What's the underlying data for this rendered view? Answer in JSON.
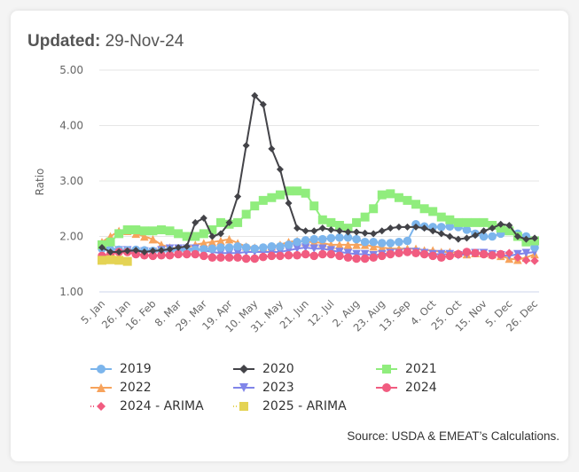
{
  "header": {
    "updated_label": "Updated:",
    "updated_value": "29-Nov-24"
  },
  "source": "Source: USDA & EMEAT’s Calculations.",
  "chart_data": {
    "type": "line",
    "title": "",
    "xlabel": "",
    "ylabel": "Ratio",
    "ylim": [
      1,
      5
    ],
    "yticks": [
      "1.00",
      "2.00",
      "3.00",
      "4.00",
      "5.00"
    ],
    "grid": true,
    "legend_position": "bottom",
    "x_tick_labels": [
      "5. Jan",
      "26. Jan",
      "16. Feb",
      "8. Mar",
      "29. Mar",
      "19. Apr",
      "10. May",
      "31. May",
      "21. Jun",
      "12. Jul",
      "2. Aug",
      "23. Aug",
      "13. Sep",
      "4. Oct",
      "25. Oct",
      "15. Nov",
      "5. Dec",
      "26. Dec"
    ],
    "weeks": 52,
    "series": [
      {
        "name": "2019",
        "color": "#7cb5ec",
        "marker": "circle",
        "line": true,
        "values": [
          1.78,
          1.76,
          1.76,
          1.75,
          1.76,
          1.75,
          1.74,
          1.74,
          1.75,
          1.75,
          1.75,
          1.76,
          1.77,
          1.78,
          1.8,
          1.8,
          1.82,
          1.8,
          1.78,
          1.8,
          1.82,
          1.82,
          1.85,
          1.9,
          1.93,
          1.95,
          1.95,
          1.97,
          1.98,
          1.98,
          1.95,
          1.9,
          1.9,
          1.88,
          1.88,
          1.9,
          1.92,
          2.22,
          2.18,
          2.17,
          2.17,
          2.18,
          2.17,
          2.12,
          2.05,
          2.0,
          2.0,
          2.05,
          2.1,
          2.05,
          2.0,
          1.8
        ]
      },
      {
        "name": "2020",
        "color": "#434348",
        "marker": "diamond",
        "line": true,
        "values": [
          1.8,
          1.72,
          1.72,
          1.74,
          1.75,
          1.72,
          1.74,
          1.75,
          1.77,
          1.8,
          1.82,
          2.25,
          2.33,
          2.0,
          2.05,
          2.25,
          2.72,
          3.64,
          4.54,
          4.38,
          3.58,
          3.21,
          2.6,
          2.15,
          2.1,
          2.1,
          2.15,
          2.12,
          2.1,
          2.08,
          2.08,
          2.06,
          2.05,
          2.1,
          2.15,
          2.17,
          2.17,
          2.17,
          2.15,
          2.1,
          2.05,
          2.0,
          1.95,
          1.97,
          2.02,
          2.1,
          2.15,
          2.22,
          2.2,
          2.0,
          1.95,
          1.97
        ]
      },
      {
        "name": "2021",
        "color": "#90ed7d",
        "marker": "square",
        "line": true,
        "values": [
          1.85,
          1.9,
          2.05,
          2.12,
          2.12,
          2.1,
          2.1,
          2.12,
          2.1,
          2.05,
          2.0,
          2.0,
          2.05,
          2.12,
          2.25,
          2.22,
          2.25,
          2.4,
          2.55,
          2.65,
          2.7,
          2.75,
          2.82,
          2.82,
          2.78,
          2.55,
          2.3,
          2.25,
          2.2,
          2.15,
          2.25,
          2.35,
          2.5,
          2.75,
          2.77,
          2.7,
          2.65,
          2.58,
          2.5,
          2.45,
          2.35,
          2.3,
          2.25,
          2.25,
          2.25,
          2.25,
          2.2,
          2.15,
          2.1,
          2.0,
          1.9,
          1.92
        ]
      },
      {
        "name": "2022",
        "color": "#f7a35c",
        "marker": "triangle",
        "line": true,
        "values": [
          1.9,
          2.0,
          2.1,
          2.1,
          2.05,
          2.0,
          1.95,
          1.85,
          1.8,
          1.78,
          1.8,
          1.85,
          1.88,
          1.9,
          1.92,
          1.95,
          1.88,
          1.82,
          1.8,
          1.8,
          1.82,
          1.85,
          1.9,
          1.92,
          1.9,
          1.9,
          1.88,
          1.85,
          1.85,
          1.85,
          1.85,
          1.85,
          1.82,
          1.8,
          1.78,
          1.78,
          1.78,
          1.78,
          1.75,
          1.75,
          1.72,
          1.72,
          1.7,
          1.68,
          1.7,
          1.7,
          1.68,
          1.65,
          1.6,
          1.58,
          1.62,
          1.68
        ]
      },
      {
        "name": "2023",
        "color": "#8085e9",
        "marker": "triangle-down",
        "line": true,
        "values": [
          1.8,
          1.8,
          1.75,
          1.75,
          1.72,
          1.73,
          1.72,
          1.75,
          1.78,
          1.78,
          1.78,
          1.78,
          1.75,
          1.72,
          1.7,
          1.7,
          1.7,
          1.72,
          1.72,
          1.72,
          1.72,
          1.72,
          1.75,
          1.78,
          1.8,
          1.78,
          1.78,
          1.75,
          1.72,
          1.7,
          1.68,
          1.68,
          1.66,
          1.68,
          1.7,
          1.7,
          1.72,
          1.72,
          1.7,
          1.68,
          1.68,
          1.68,
          1.66,
          1.68,
          1.7,
          1.7,
          1.68,
          1.66,
          1.65,
          1.68,
          1.7,
          1.72
        ]
      },
      {
        "name": "2024",
        "color": "#f15c80",
        "marker": "circle",
        "line": true,
        "values": [
          1.65,
          1.68,
          1.72,
          1.72,
          1.68,
          1.66,
          1.65,
          1.66,
          1.66,
          1.68,
          1.68,
          1.68,
          1.65,
          1.62,
          1.62,
          1.62,
          1.62,
          1.6,
          1.6,
          1.63,
          1.65,
          1.65,
          1.66,
          1.66,
          1.68,
          1.65,
          1.68,
          1.68,
          1.65,
          1.62,
          1.6,
          1.6,
          1.62,
          1.65,
          1.68,
          1.7,
          1.72,
          1.7,
          1.68,
          1.65,
          1.62,
          1.65,
          1.68,
          1.72,
          1.7,
          1.68,
          1.66,
          1.68,
          null,
          null,
          null,
          null
        ]
      },
      {
        "name": "2024 - ARIMA",
        "color": "#f15c80",
        "marker": "diamond",
        "line": false,
        "values": [
          null,
          null,
          null,
          null,
          null,
          null,
          null,
          null,
          null,
          null,
          null,
          null,
          null,
          null,
          null,
          null,
          null,
          null,
          null,
          null,
          null,
          null,
          null,
          null,
          null,
          null,
          null,
          null,
          null,
          null,
          null,
          null,
          null,
          null,
          null,
          null,
          null,
          null,
          null,
          null,
          null,
          null,
          null,
          null,
          null,
          null,
          null,
          1.68,
          1.7,
          1.62,
          1.57,
          1.56
        ]
      },
      {
        "name": "2025 - ARIMA",
        "color": "#e4d354",
        "marker": "square",
        "line": false,
        "values": [
          1.57,
          1.58,
          1.57,
          1.55,
          null,
          null,
          null,
          null,
          null,
          null,
          null,
          null,
          null,
          null,
          null,
          null,
          null,
          null,
          null,
          null,
          null,
          null,
          null,
          null,
          null,
          null,
          null,
          null,
          null,
          null,
          null,
          null,
          null,
          null,
          null,
          null,
          null,
          null,
          null,
          null,
          null,
          null,
          null,
          null,
          null,
          null,
          null,
          null,
          null,
          null,
          null,
          null
        ]
      }
    ]
  }
}
